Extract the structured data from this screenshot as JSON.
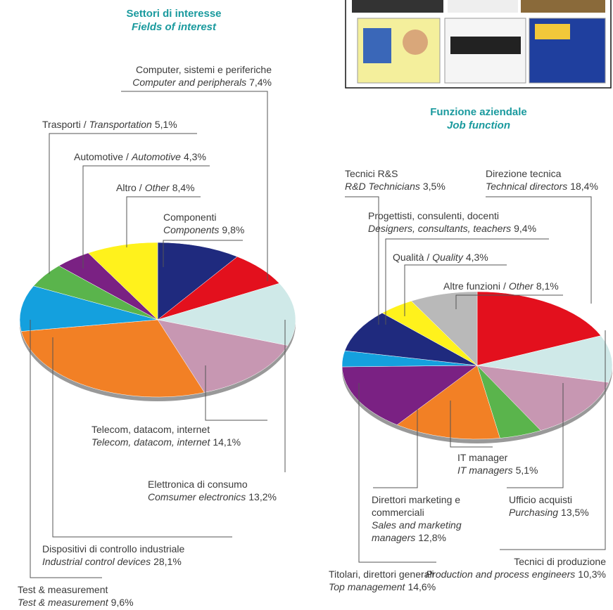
{
  "chart_data": [
    {
      "type": "pie",
      "title": "Settori di interesse",
      "subtitle": "Fields of interest",
      "separator": "/",
      "categories": [
        "Componenti",
        "Computer, sistemi e periferiche",
        "Elettronica di consumo",
        "Telecom, datacom, internet",
        "Dispositivi di controllo industriale",
        "Test & measurement",
        "Trasporti",
        "Automotive",
        "Altro"
      ],
      "categories_en": [
        "Components",
        "Computer and peripherals",
        "Comsumer electronics",
        "Telecom, datacom, internet",
        "Industrial control devices",
        "Test & measurement",
        "Transportation",
        "Automotive",
        "Other"
      ],
      "values": [
        9.8,
        7.4,
        13.2,
        14.1,
        28.1,
        9.6,
        5.1,
        4.3,
        8.4
      ],
      "value_labels": [
        "9,8%",
        "7,4%",
        "13,2%",
        "14,1%",
        "28,1%",
        "9,6%",
        "5,1%",
        "4,3%",
        "8,4%"
      ],
      "colors": [
        "#1f2a7e",
        "#e3101d",
        "#cfe9e8",
        "#c797b2",
        "#f28025",
        "#14a0de",
        "#5ab44c",
        "#7a2183",
        "#fff21c"
      ]
    },
    {
      "type": "pie",
      "title": "Funzione aziendale",
      "subtitle": "Job function",
      "separator": "/",
      "categories": [
        "Direzione tecnica",
        "Tecnici di produzione",
        "Ufficio acquisti",
        "IT manager",
        "Direttori marketing e commerciali",
        "Titolari, direttori generali",
        "Tecnici R&S",
        "Progettisti, consulenti, docenti",
        "Qualità",
        "Altre funzioni"
      ],
      "categories_en": [
        "Technical directors",
        "Production and process engineers",
        "Purchasing",
        "IT managers",
        "Sales and marketing managers",
        "Top management",
        "R&D Technicians",
        "Designers, consultants, teachers",
        "Quality",
        "Other"
      ],
      "values": [
        18.4,
        10.3,
        13.5,
        5.1,
        12.8,
        14.6,
        3.5,
        9.4,
        4.3,
        8.1
      ],
      "value_labels": [
        "18,4%",
        "10,3%",
        "13,5%",
        "5,1%",
        "12,8%",
        "14,6%",
        "3,5%",
        "9,4%",
        "4,3%",
        "8,1%"
      ],
      "colors": [
        "#e3101d",
        "#cfe9e8",
        "#c797b2",
        "#5ab44c",
        "#f28025",
        "#7a2183",
        "#14a0de",
        "#1f2a7e",
        "#fff21c",
        "#b9b9b9"
      ]
    }
  ]
}
